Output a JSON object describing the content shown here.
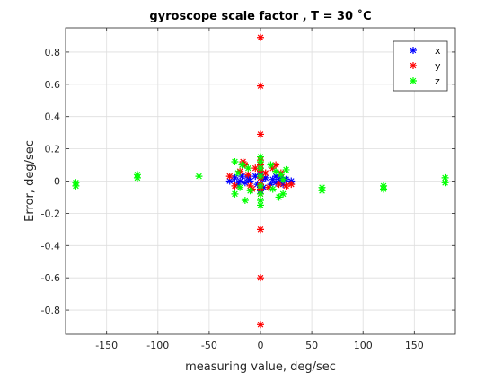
{
  "chart_data": {
    "type": "scatter",
    "title": "gyroscope scale factor , T = 30 ˚C",
    "xlabel": "measuring value, deg/sec",
    "ylabel": "Error, deg/sec",
    "xlim": [
      -190,
      190
    ],
    "ylim": [
      -0.95,
      0.95
    ],
    "xticks": [
      -150,
      -100,
      -50,
      0,
      50,
      100,
      150
    ],
    "yticks": [
      -0.8,
      -0.6,
      -0.4,
      -0.2,
      0,
      0.2,
      0.4,
      0.6,
      0.8
    ],
    "xtick_labels": [
      "-150",
      "-100",
      "-50",
      "0",
      "50",
      "100",
      "150"
    ],
    "ytick_labels": [
      "-0.8",
      "-0.6",
      "-0.4",
      "-0.2",
      "0",
      "0.2",
      "0.4",
      "0.6",
      "0.8"
    ],
    "grid": true,
    "marker": "*",
    "legend_position": "top-right",
    "series": [
      {
        "name": "x",
        "color": "#0000ff",
        "points": [
          [
            -30,
            0.0
          ],
          [
            -25,
            0.02
          ],
          [
            -22,
            -0.02
          ],
          [
            -20,
            0.0
          ],
          [
            -18,
            0.03
          ],
          [
            -15,
            -0.01
          ],
          [
            -12,
            0.02
          ],
          [
            -10,
            0.0
          ],
          [
            -5,
            0.03
          ],
          [
            -3,
            -0.02
          ],
          [
            0,
            0.08
          ],
          [
            0,
            0.04
          ],
          [
            0,
            -0.03
          ],
          [
            0,
            -0.06
          ],
          [
            2,
            0.01
          ],
          [
            3,
            -0.04
          ],
          [
            5,
            0.02
          ],
          [
            10,
            -0.02
          ],
          [
            12,
            0.01
          ],
          [
            15,
            0.03
          ],
          [
            15,
            -0.01
          ],
          [
            18,
            0.0
          ],
          [
            20,
            0.02
          ],
          [
            22,
            -0.02
          ],
          [
            25,
            0.01
          ],
          [
            30,
            0.0
          ]
        ]
      },
      {
        "name": "y",
        "color": "#ff0000",
        "points": [
          [
            0,
            0.89
          ],
          [
            0,
            0.59
          ],
          [
            0,
            0.29
          ],
          [
            0,
            0.13
          ],
          [
            0,
            0.1
          ],
          [
            0,
            0.06
          ],
          [
            0,
            0.02
          ],
          [
            0,
            -0.02
          ],
          [
            0,
            -0.05
          ],
          [
            0,
            -0.08
          ],
          [
            0,
            -0.3
          ],
          [
            0,
            -0.6
          ],
          [
            0,
            -0.89
          ],
          [
            -30,
            0.03
          ],
          [
            -25,
            -0.03
          ],
          [
            -20,
            0.06
          ],
          [
            -17,
            0.12
          ],
          [
            -15,
            0.1
          ],
          [
            -12,
            0.04
          ],
          [
            -10,
            -0.03
          ],
          [
            -8,
            -0.05
          ],
          [
            -5,
            0.08
          ],
          [
            5,
            0.05
          ],
          [
            8,
            -0.04
          ],
          [
            12,
            0.08
          ],
          [
            15,
            0.1
          ],
          [
            18,
            -0.02
          ],
          [
            20,
            0.05
          ],
          [
            25,
            -0.03
          ],
          [
            30,
            -0.02
          ]
        ]
      },
      {
        "name": "z",
        "color": "#00ff00",
        "points": [
          [
            -180,
            -0.01
          ],
          [
            -180,
            -0.03
          ],
          [
            -120,
            0.02
          ],
          [
            -120,
            0.04
          ],
          [
            -60,
            0.03
          ],
          [
            60,
            -0.04
          ],
          [
            60,
            -0.06
          ],
          [
            120,
            -0.03
          ],
          [
            120,
            -0.05
          ],
          [
            180,
            0.02
          ],
          [
            180,
            -0.01
          ],
          [
            -25,
            0.12
          ],
          [
            -25,
            -0.08
          ],
          [
            -22,
            0.05
          ],
          [
            -20,
            -0.04
          ],
          [
            -18,
            0.1
          ],
          [
            -15,
            -0.12
          ],
          [
            -12,
            0.08
          ],
          [
            -10,
            -0.06
          ],
          [
            0,
            0.15
          ],
          [
            0,
            0.12
          ],
          [
            0,
            0.08
          ],
          [
            0,
            0.03
          ],
          [
            0,
            -0.03
          ],
          [
            0,
            -0.08
          ],
          [
            0,
            -0.12
          ],
          [
            0,
            -0.15
          ],
          [
            10,
            0.1
          ],
          [
            12,
            -0.05
          ],
          [
            15,
            0.06
          ],
          [
            18,
            -0.1
          ],
          [
            20,
            0.04
          ],
          [
            22,
            -0.08
          ],
          [
            25,
            0.07
          ],
          [
            22,
            0.01
          ]
        ]
      }
    ]
  }
}
